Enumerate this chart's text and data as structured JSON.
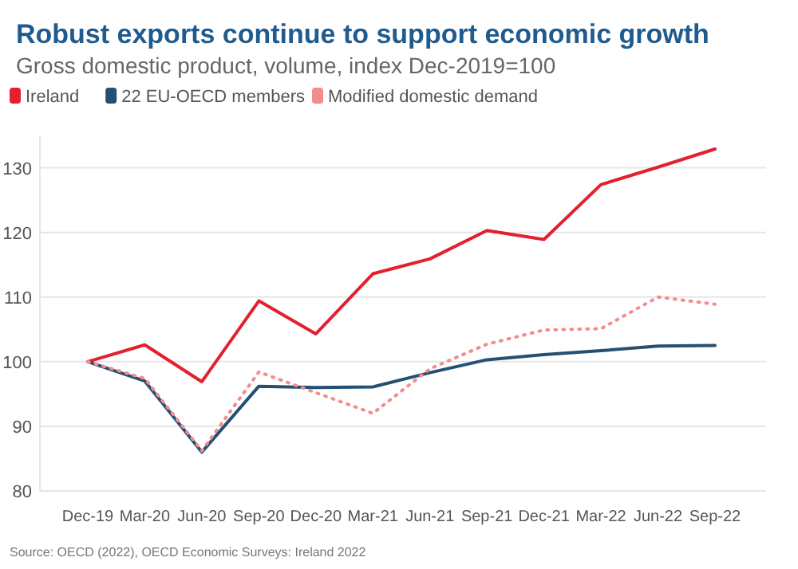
{
  "chart_data": {
    "type": "line",
    "title": "Robust exports continue to support economic growth",
    "subtitle": "Gross domestic product, volume, index Dec-2019=100",
    "categories": [
      "Dec-19",
      "Mar-20",
      "Jun-20",
      "Sep-20",
      "Dec-20",
      "Mar-21",
      "Jun-21",
      "Sep-21",
      "Dec-21",
      "Mar-22",
      "Jun-22",
      "Sep-22"
    ],
    "series": [
      {
        "name": "Ireland",
        "color": "#e3202e",
        "values": [
          100,
          102.6,
          96.9,
          109.4,
          104.3,
          113.6,
          115.9,
          120.3,
          118.9,
          127.4,
          130.1,
          132.9
        ]
      },
      {
        "name": "22 EU-OECD members",
        "color": "#245073",
        "values": [
          100,
          97,
          86,
          96.2,
          96,
          96.1,
          98.3,
          100.3,
          101.1,
          101.7,
          102.4,
          102.5
        ]
      },
      {
        "name": "Modified domestic demand",
        "color": "#f48b8e",
        "line_style": "dotted",
        "values": [
          100,
          97.4,
          86.2,
          98.4,
          95.2,
          92,
          98.9,
          102.7,
          104.9,
          105.1,
          110,
          108.9
        ]
      }
    ],
    "ylim": [
      80,
      135
    ],
    "yticks": [
      80,
      90,
      100,
      110,
      120,
      130
    ],
    "grid": "y",
    "legend": "top left",
    "line_style": "solid",
    "annotations": [
      "Source: OECD (2022), OECD Economic Surveys: Ireland 2022"
    ]
  }
}
